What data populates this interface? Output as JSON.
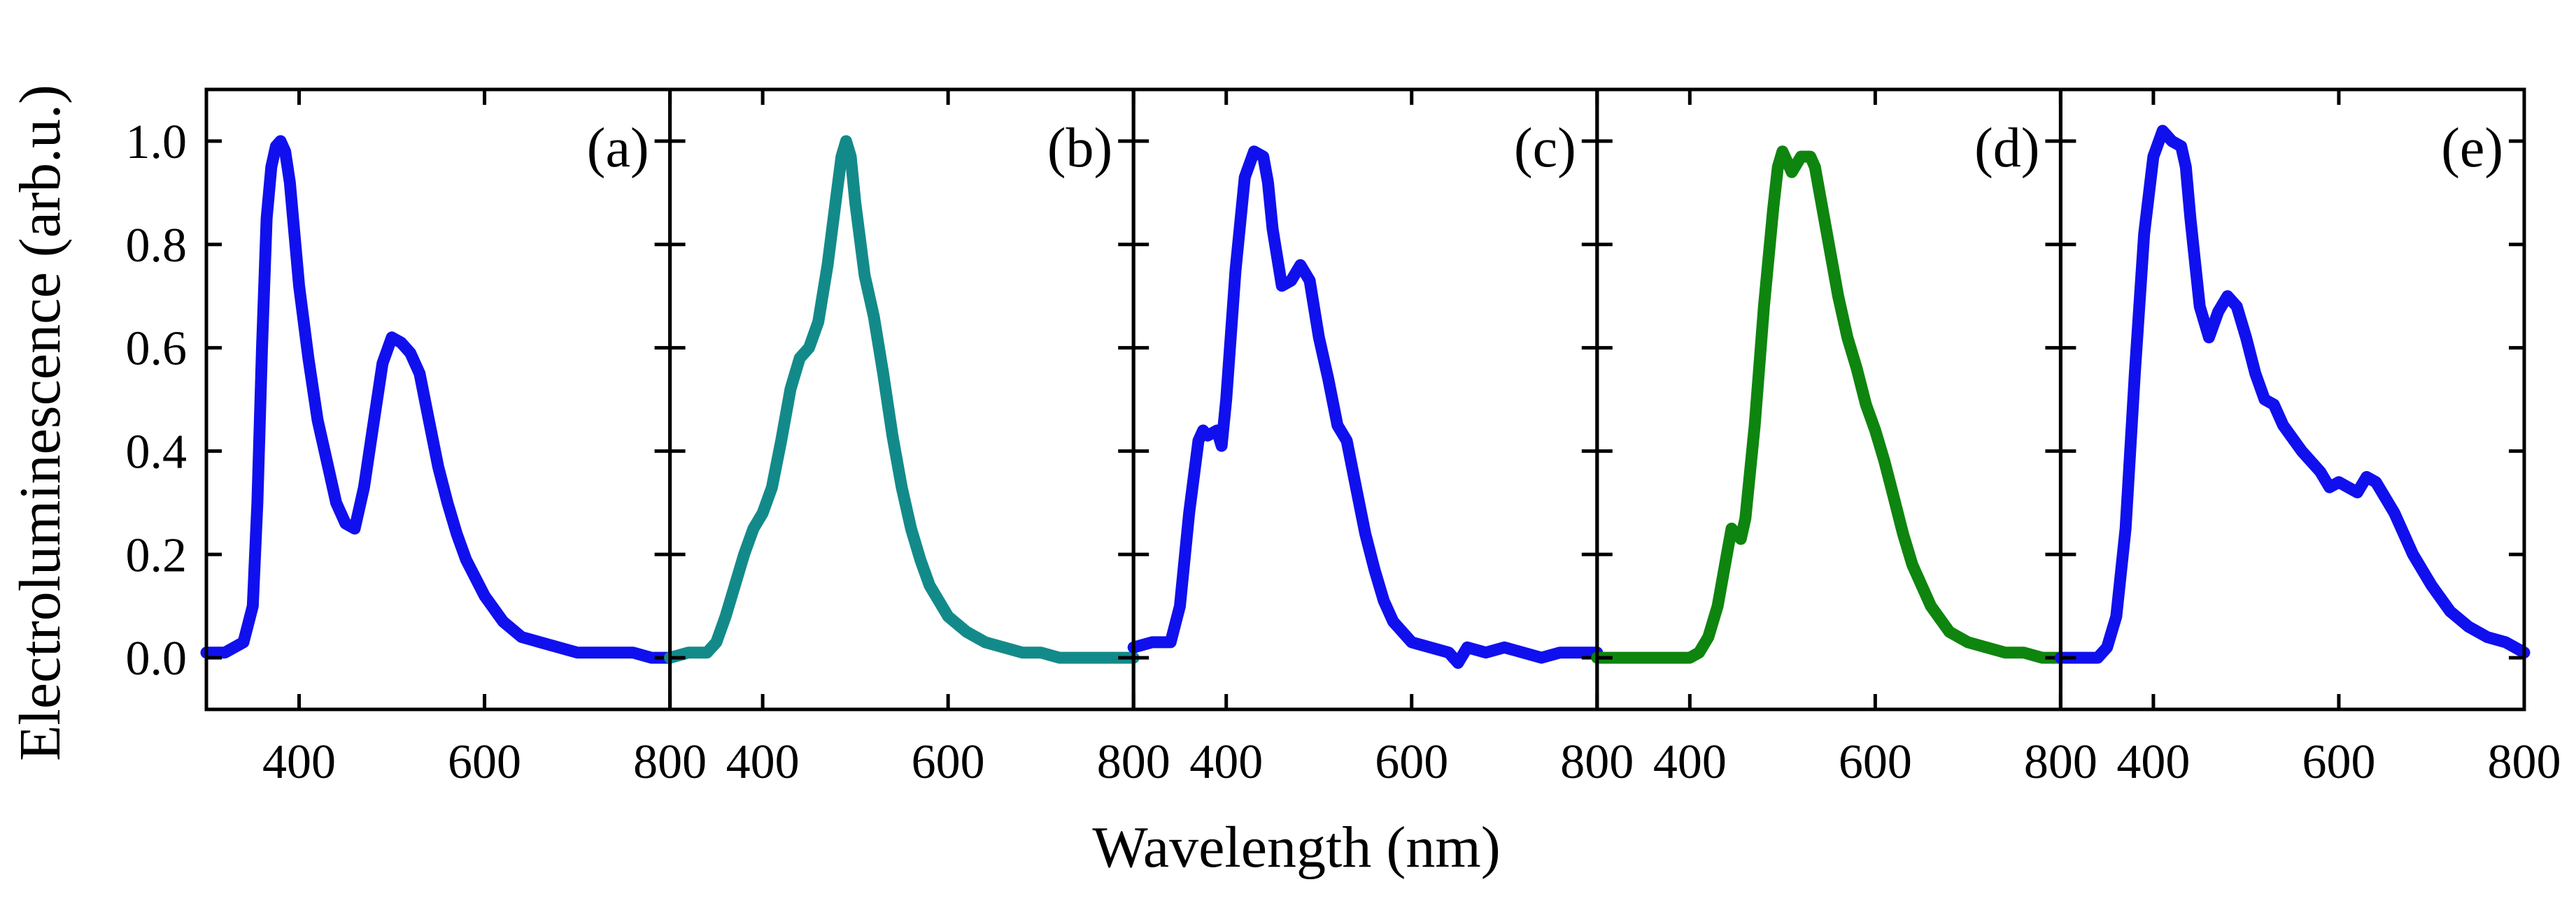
{
  "chart_data": {
    "type": "line",
    "ylabel": "Electroluminescence (arb.u.)",
    "xlabel": "Wavelength (nm)",
    "xlim": [
      300,
      800
    ],
    "ylim": [
      -0.1,
      1.1
    ],
    "yticks": [
      0.0,
      0.2,
      0.4,
      0.6,
      0.8,
      1.0
    ],
    "ytick_labels": [
      "0.0",
      "0.2",
      "0.4",
      "0.6",
      "0.8",
      "1.0"
    ],
    "xticks": [
      400,
      600,
      800
    ],
    "xtick_labels": [
      "400",
      "600",
      "800"
    ],
    "panels": [
      {
        "label": "(a)",
        "color": "#1010ee",
        "x": [
          300,
          320,
          340,
          350,
          355,
          360,
          365,
          370,
          375,
          380,
          385,
          390,
          395,
          400,
          410,
          420,
          430,
          440,
          450,
          460,
          470,
          480,
          490,
          500,
          510,
          520,
          530,
          540,
          550,
          560,
          570,
          580,
          600,
          620,
          640,
          660,
          680,
          700,
          720,
          740,
          760,
          780,
          800
        ],
        "y": [
          0.01,
          0.01,
          0.03,
          0.1,
          0.3,
          0.6,
          0.85,
          0.95,
          0.99,
          1.0,
          0.98,
          0.92,
          0.82,
          0.72,
          0.58,
          0.46,
          0.38,
          0.3,
          0.26,
          0.25,
          0.33,
          0.45,
          0.57,
          0.62,
          0.61,
          0.59,
          0.55,
          0.46,
          0.37,
          0.3,
          0.24,
          0.19,
          0.12,
          0.07,
          0.04,
          0.03,
          0.02,
          0.01,
          0.01,
          0.01,
          0.01,
          0.0,
          0.0
        ]
      },
      {
        "label": "(b)",
        "color": "#138a8a",
        "x": [
          300,
          320,
          340,
          350,
          360,
          370,
          380,
          390,
          400,
          410,
          420,
          430,
          440,
          450,
          460,
          470,
          480,
          485,
          490,
          495,
          500,
          510,
          520,
          530,
          540,
          550,
          560,
          570,
          580,
          600,
          620,
          640,
          660,
          680,
          700,
          720,
          740,
          760,
          780,
          800
        ],
        "y": [
          0.0,
          0.01,
          0.01,
          0.03,
          0.08,
          0.14,
          0.2,
          0.25,
          0.28,
          0.33,
          0.42,
          0.52,
          0.58,
          0.6,
          0.65,
          0.76,
          0.9,
          0.97,
          1.0,
          0.97,
          0.88,
          0.74,
          0.66,
          0.55,
          0.43,
          0.33,
          0.25,
          0.19,
          0.14,
          0.08,
          0.05,
          0.03,
          0.02,
          0.01,
          0.01,
          0.0,
          0.0,
          0.0,
          0.0,
          0.0
        ]
      },
      {
        "label": "(c)",
        "color": "#1010ee",
        "x": [
          300,
          320,
          340,
          350,
          360,
          370,
          375,
          380,
          390,
          395,
          400,
          410,
          420,
          430,
          440,
          445,
          450,
          460,
          470,
          480,
          490,
          500,
          510,
          520,
          530,
          540,
          550,
          560,
          570,
          580,
          600,
          620,
          640,
          650,
          660,
          680,
          700,
          720,
          740,
          760,
          780,
          800
        ],
        "y": [
          0.02,
          0.03,
          0.03,
          0.1,
          0.28,
          0.42,
          0.44,
          0.43,
          0.44,
          0.41,
          0.5,
          0.75,
          0.93,
          0.98,
          0.97,
          0.92,
          0.83,
          0.72,
          0.73,
          0.76,
          0.73,
          0.62,
          0.54,
          0.45,
          0.42,
          0.33,
          0.24,
          0.17,
          0.11,
          0.07,
          0.03,
          0.02,
          0.01,
          -0.01,
          0.02,
          0.01,
          0.02,
          0.01,
          0.0,
          0.01,
          0.01,
          0.01
        ]
      },
      {
        "label": "(d)",
        "color": "#0e850e",
        "x": [
          300,
          320,
          340,
          360,
          380,
          400,
          410,
          420,
          430,
          440,
          445,
          450,
          455,
          460,
          470,
          480,
          490,
          495,
          500,
          505,
          510,
          520,
          530,
          535,
          540,
          550,
          560,
          570,
          580,
          590,
          600,
          610,
          620,
          630,
          640,
          660,
          680,
          700,
          720,
          740,
          760,
          780,
          800
        ],
        "y": [
          0.0,
          0.0,
          0.0,
          0.0,
          0.0,
          0.0,
          0.01,
          0.04,
          0.1,
          0.2,
          0.25,
          0.24,
          0.23,
          0.27,
          0.45,
          0.68,
          0.87,
          0.95,
          0.98,
          0.96,
          0.94,
          0.97,
          0.97,
          0.95,
          0.9,
          0.8,
          0.7,
          0.62,
          0.56,
          0.49,
          0.44,
          0.38,
          0.31,
          0.24,
          0.18,
          0.1,
          0.05,
          0.03,
          0.02,
          0.01,
          0.01,
          0.0,
          0.0
        ]
      },
      {
        "label": "(e)",
        "color": "#1010ee",
        "x": [
          300,
          320,
          340,
          350,
          360,
          370,
          380,
          390,
          400,
          410,
          415,
          420,
          430,
          435,
          440,
          450,
          460,
          470,
          480,
          490,
          500,
          510,
          520,
          530,
          540,
          560,
          580,
          590,
          600,
          610,
          620,
          630,
          640,
          660,
          680,
          700,
          720,
          740,
          760,
          780,
          800
        ],
        "y": [
          0.0,
          0.0,
          0.0,
          0.02,
          0.08,
          0.25,
          0.55,
          0.82,
          0.97,
          1.02,
          1.01,
          1.0,
          0.99,
          0.95,
          0.85,
          0.68,
          0.62,
          0.67,
          0.7,
          0.68,
          0.62,
          0.55,
          0.5,
          0.49,
          0.45,
          0.4,
          0.36,
          0.33,
          0.34,
          0.33,
          0.32,
          0.35,
          0.34,
          0.28,
          0.2,
          0.14,
          0.09,
          0.06,
          0.04,
          0.03,
          0.01
        ]
      }
    ]
  }
}
